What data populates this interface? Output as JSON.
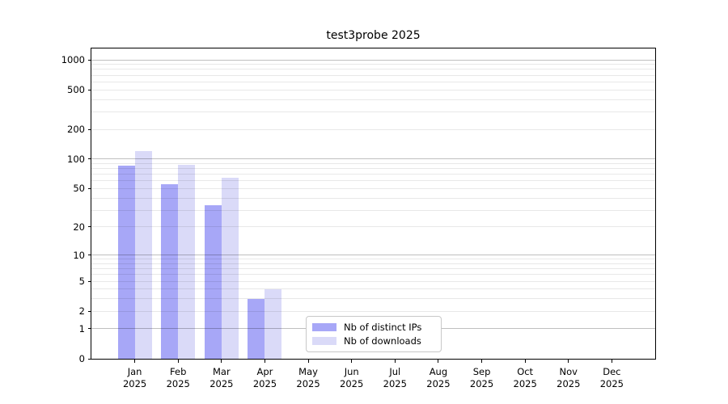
{
  "chart_data": {
    "type": "bar",
    "title": "test3probe 2025",
    "categories": [
      "Jan",
      "Feb",
      "Mar",
      "Apr",
      "May",
      "Jun",
      "Jul",
      "Aug",
      "Sep",
      "Oct",
      "Nov",
      "Dec"
    ],
    "x_tick_year_line": "2025",
    "series": [
      {
        "name": "Nb of distinct IPs",
        "color": "#a7a7f7",
        "values": [
          85,
          55,
          34,
          3,
          0,
          0,
          0,
          0,
          0,
          0,
          0,
          0
        ]
      },
      {
        "name": "Nb of downloads",
        "color": "#dadaf8",
        "values": [
          120,
          88,
          65,
          4,
          0,
          0,
          0,
          0,
          0,
          0,
          0,
          0
        ]
      }
    ],
    "y_ticks": [
      0,
      1,
      2,
      5,
      10,
      20,
      50,
      100,
      200,
      500,
      1000
    ],
    "scale": "log10(1+x)",
    "ylim": [
      0,
      1300
    ],
    "xlim": [
      -1,
      12
    ],
    "grid": {
      "orientation": "horizontal",
      "major_at": "powers of 10",
      "minor_at": "2-9 multiples of powers of 10",
      "major_color": "rgba(0,0,0,0.25)",
      "minor_color": "rgba(0,0,0,0.09)"
    },
    "legend": {
      "position": "lower center"
    }
  }
}
